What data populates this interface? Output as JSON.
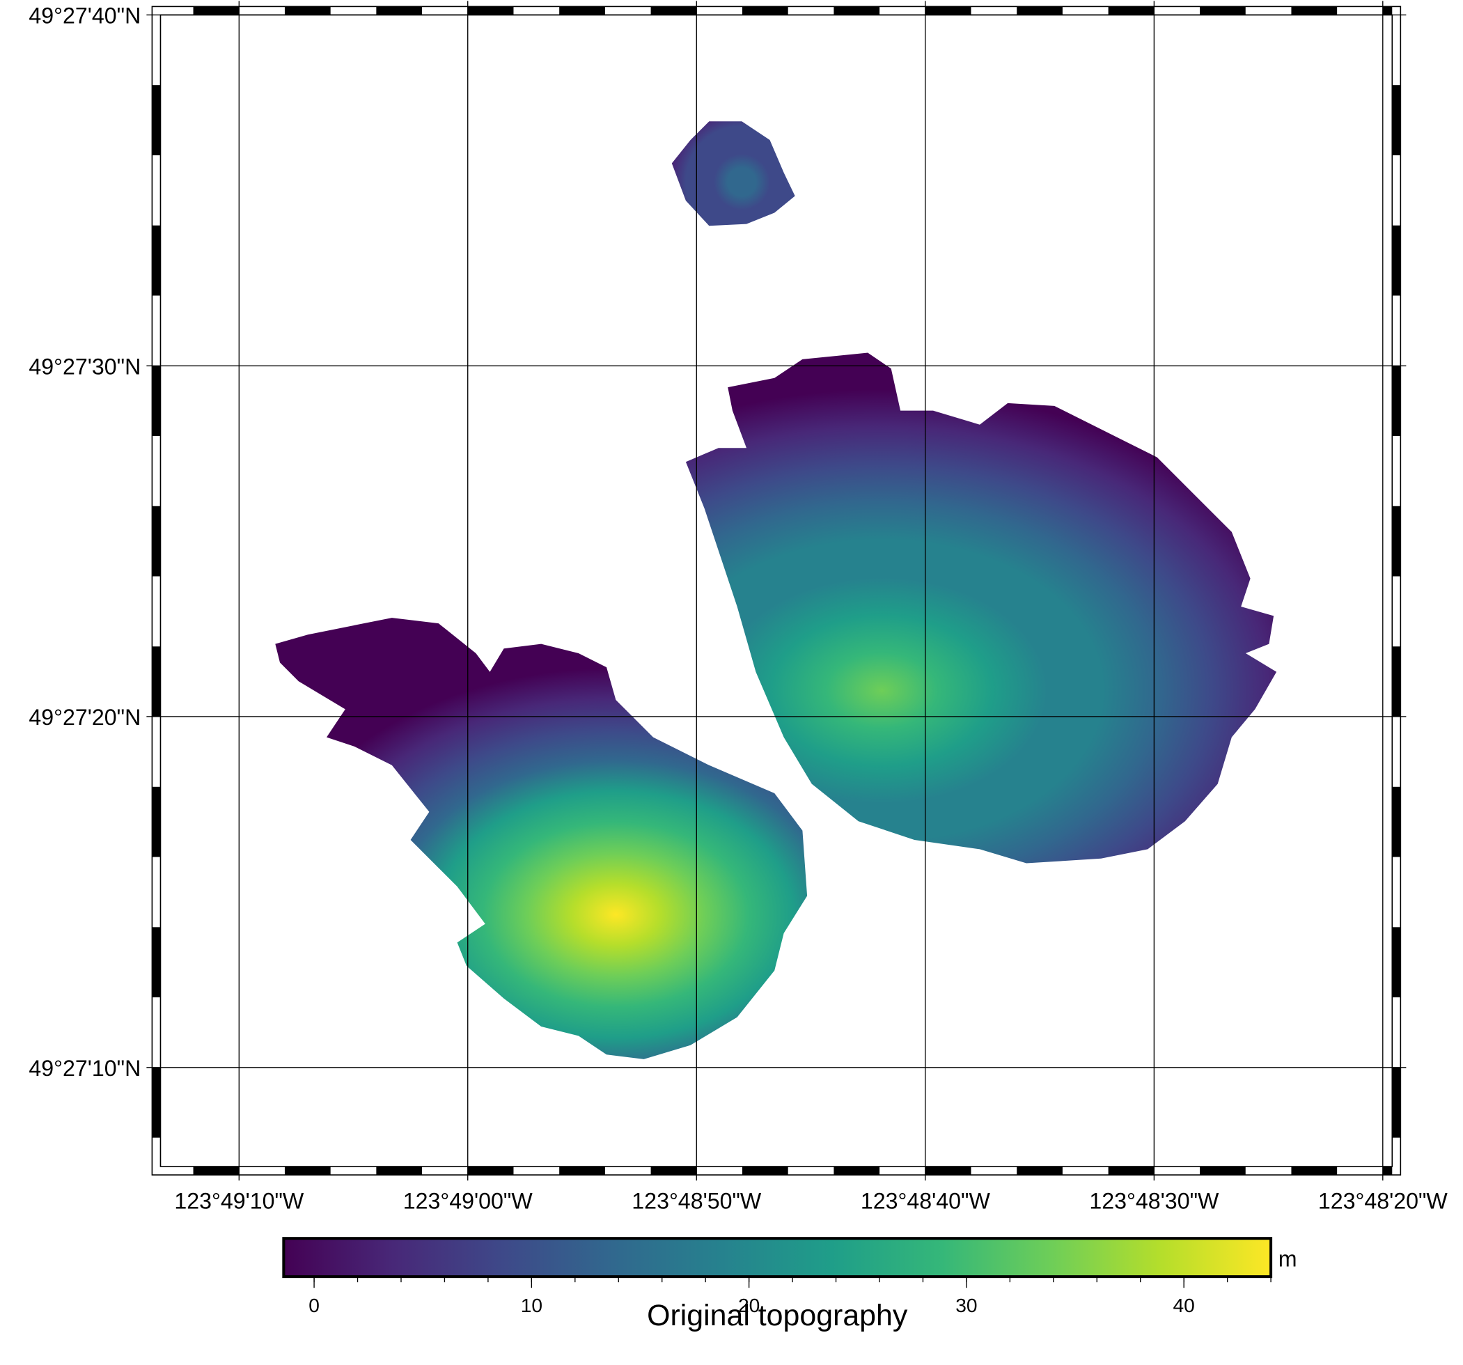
{
  "chart_data": {
    "type": "map",
    "xlim": [
      -123.820398,
      -123.805442
    ],
    "ylim": [
      49.451994,
      49.461111
    ],
    "xticks": [
      {
        "value": -123.819444,
        "label": "123°49'10\"W"
      },
      {
        "value": -123.816667,
        "label": "123°49'00\"W"
      },
      {
        "value": -123.813889,
        "label": "123°48'50\"W"
      },
      {
        "value": -123.811111,
        "label": "123°48'40\"W"
      },
      {
        "value": -123.808333,
        "label": "123°48'30\"W"
      },
      {
        "value": -123.805556,
        "label": "123°48'20\"W"
      }
    ],
    "yticks": [
      {
        "value": 49.452778,
        "label": "49°27'10\"N"
      },
      {
        "value": 49.455556,
        "label": "49°27'20\"N"
      },
      {
        "value": 49.458333,
        "label": "49°27'30\"N"
      },
      {
        "value": 49.461111,
        "label": "49°27'40\"N"
      }
    ],
    "grid": true,
    "colormap": "viridis",
    "colorbar": {
      "label": "Original topography",
      "unit": "m",
      "clim": [
        -1.4,
        44.0
      ],
      "ticks": [
        0,
        10,
        20,
        30,
        40
      ],
      "minor_step": 2
    }
  }
}
